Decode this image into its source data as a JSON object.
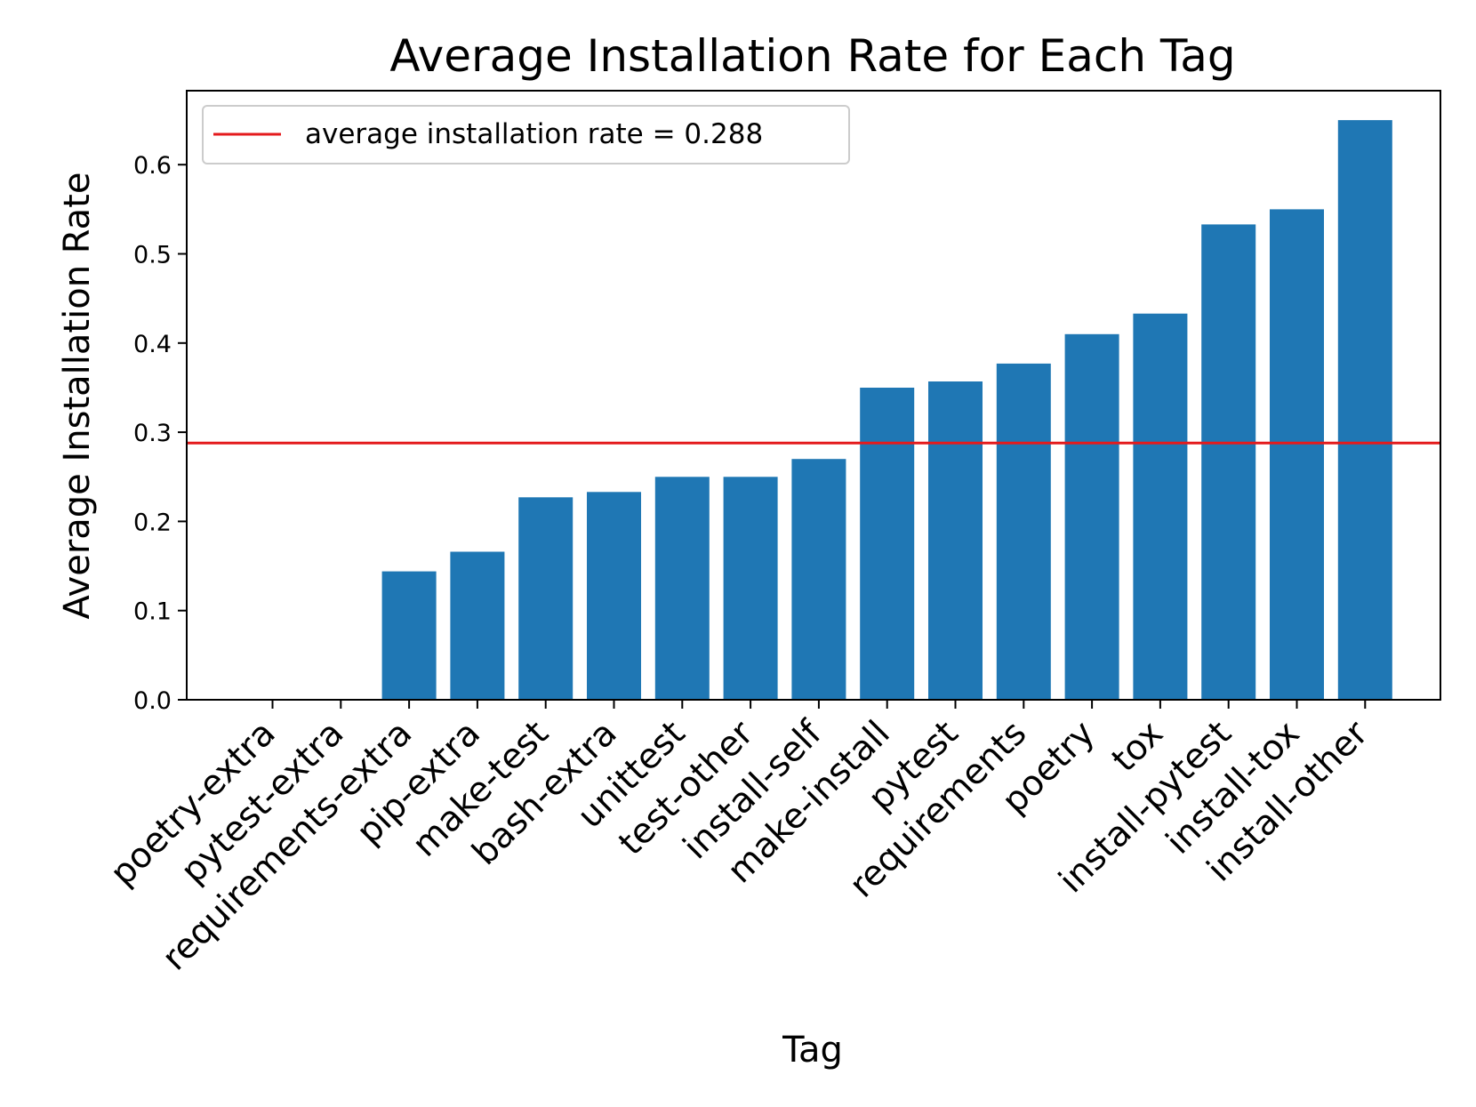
{
  "chart_data": {
    "type": "bar",
    "title": "Average Installation Rate for Each Tag",
    "xlabel": "Tag",
    "ylabel": "Average Installation Rate",
    "categories": [
      "poetry-extra",
      "pytest-extra",
      "requirements-extra",
      "pip-extra",
      "make-test",
      "bash-extra",
      "unittest",
      "test-other",
      "install-self",
      "make-install",
      "pytest",
      "requirements",
      "poetry",
      "tox",
      "install-pytest",
      "install-tox",
      "install-other"
    ],
    "values": [
      0.0,
      0.0,
      0.144,
      0.166,
      0.227,
      0.233,
      0.25,
      0.25,
      0.27,
      0.35,
      0.357,
      0.377,
      0.41,
      0.433,
      0.533,
      0.55,
      0.65
    ],
    "ylim": [
      0,
      0.683
    ],
    "yticks": [
      "0.0",
      "0.1",
      "0.2",
      "0.3",
      "0.4",
      "0.5",
      "0.6"
    ],
    "bar_color": "#1f77b4",
    "reference_line": {
      "value": 0.288,
      "color": "#e41a1c",
      "label": "average installation rate = 0.288"
    },
    "legend_position": "upper-left",
    "grid": false
  }
}
